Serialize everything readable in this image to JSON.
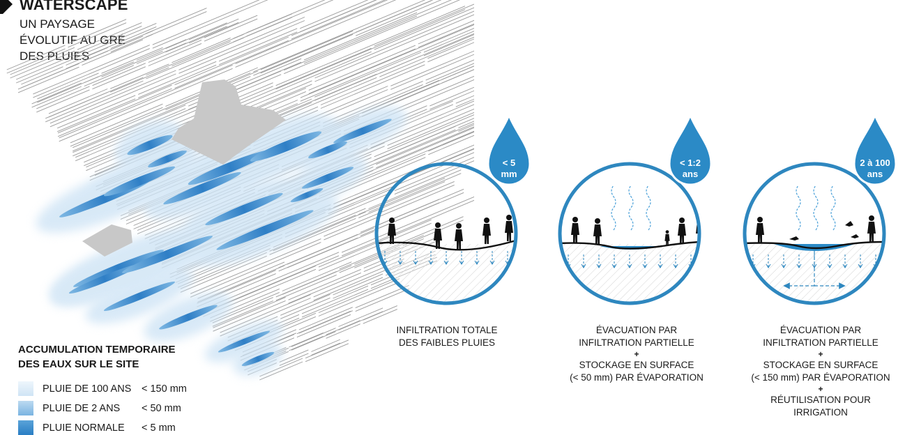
{
  "title": "WATERSCAPE",
  "subtitle_lines": [
    "UN PAYSAGE",
    "ÉVOLUTIF AU GRÉ",
    "DES PLUIES"
  ],
  "legend": {
    "title_lines": [
      "ACCUMULATION TEMPORAIRE",
      "DES EAUX SUR LE SITE"
    ],
    "items": [
      {
        "name": "PLUIE DE 100 ANS",
        "value": "< 150 mm",
        "color": "#dcecf8"
      },
      {
        "name": "PLUIE DE 2 ANS",
        "value": "< 50 mm",
        "color": "#8fc2e8"
      },
      {
        "name": "PLUIE NORMALE",
        "value": "< 5 mm",
        "color": "#3d8fcf"
      }
    ]
  },
  "scenarios": [
    {
      "drop_lines": [
        "< 5",
        "mm"
      ],
      "caption_groups": [
        [
          "INFILTRATION TOTALE",
          "DES FAIBLES PLUIES"
        ]
      ]
    },
    {
      "drop_lines": [
        "< 1:2",
        "ans"
      ],
      "caption_groups": [
        [
          "ÉVACUATION PAR",
          "INFILTRATION PARTIELLE"
        ],
        [
          "STOCKAGE EN SURFACE",
          "(< 50 mm) PAR ÉVAPORATION"
        ]
      ]
    },
    {
      "drop_lines": [
        "2 à 100",
        "ans"
      ],
      "caption_groups": [
        [
          "ÉVACUATION PAR",
          "INFILTRATION PARTIELLE"
        ],
        [
          "STOCKAGE EN SURFACE",
          "(< 150 mm) PAR ÉVAPORATION"
        ],
        [
          "RÉUTILISATION POUR",
          "IRRIGATION"
        ]
      ]
    }
  ],
  "plus_sign": "+",
  "colors": {
    "water": "#2b8ac6",
    "ring": "#2e87bf",
    "ground": "#111111",
    "hatch": "#bbbbbb",
    "building": "#c9c9c9"
  }
}
